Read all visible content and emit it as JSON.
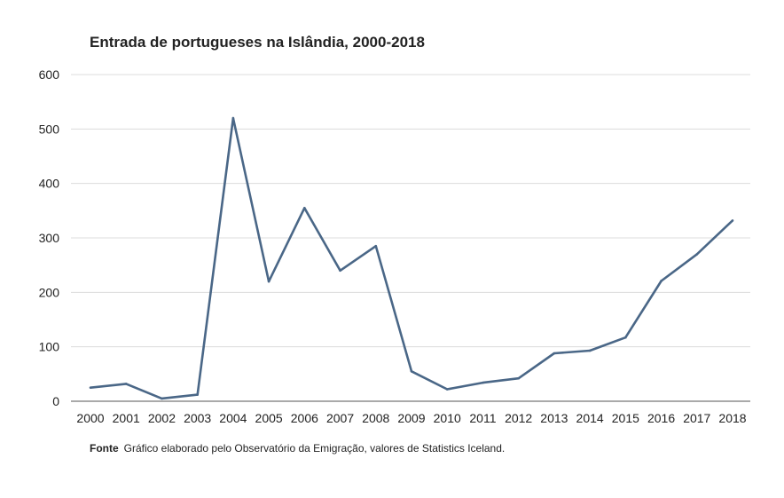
{
  "chart_data": {
    "type": "line",
    "title": "Entrada de portugueses na Islândia, 2000-2018",
    "xlabel": "",
    "ylabel": "",
    "ylim": [
      0,
      600
    ],
    "yticks": [
      "0",
      "100",
      "200",
      "300",
      "400",
      "500",
      "600"
    ],
    "grid": true,
    "categories": [
      "2000",
      "2001",
      "2002",
      "2003",
      "2004",
      "2005",
      "2006",
      "2007",
      "2008",
      "2009",
      "2010",
      "2011",
      "2012",
      "2013",
      "2014",
      "2015",
      "2016",
      "2017",
      "2018"
    ],
    "series": [
      {
        "values": [
          25,
          32,
          5,
          12,
          520,
          220,
          355,
          240,
          285,
          55,
          22,
          34,
          42,
          88,
          93,
          117,
          221,
          270,
          332
        ],
        "color": "#4a6787"
      }
    ]
  },
  "source": {
    "label": "Fonte",
    "text": "Gráfico elaborado pelo Observatório da Emigração, valores de Statistics Iceland."
  }
}
